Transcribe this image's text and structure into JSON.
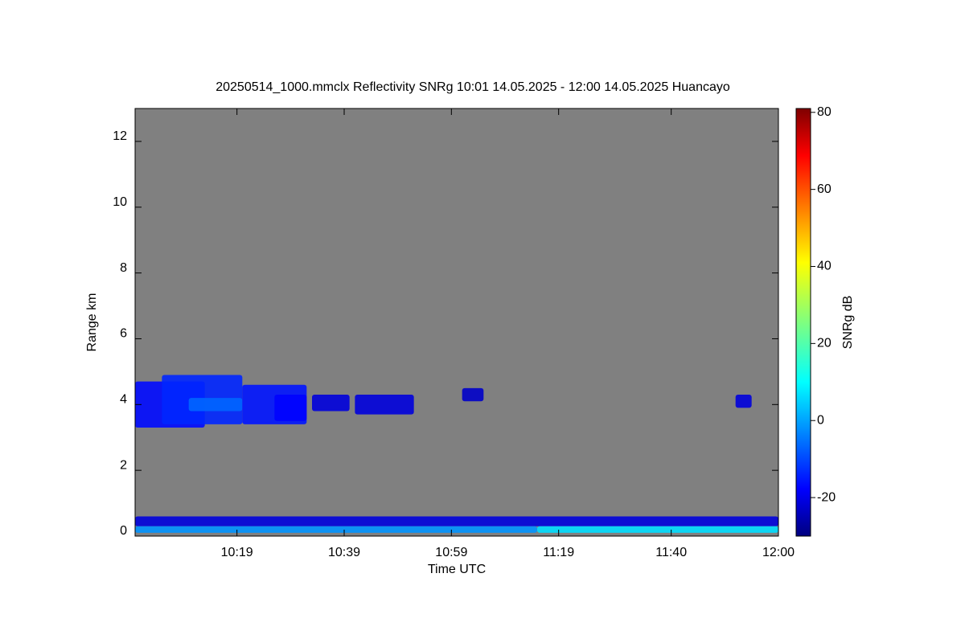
{
  "chart_data": {
    "type": "heatmap",
    "title": "20250514_1000.mmclx Reflectivity SNRg   10:01 14.05.2025 - 12:00 14.05.2025 Huancayo",
    "xlabel": "Time UTC",
    "ylabel": "Range km",
    "colorbar_label": "SNRg dB",
    "xlim": [
      "10:00",
      "12:00"
    ],
    "xticks": [
      "10:19",
      "10:39",
      "10:59",
      "11:19",
      "11:40",
      "12:00"
    ],
    "ylim": [
      0,
      13
    ],
    "yticks": [
      0,
      2,
      4,
      6,
      8,
      10,
      12
    ],
    "clim": [
      -30,
      81
    ],
    "cticks": [
      -20,
      0,
      20,
      40,
      60,
      80
    ],
    "colormap": "jet",
    "background": "#808080",
    "cells": [
      {
        "x": [
          "10:00",
          "10:13"
        ],
        "y": [
          3.3,
          4.7
        ],
        "value": -15
      },
      {
        "x": [
          "10:05",
          "10:20"
        ],
        "y": [
          3.4,
          4.9
        ],
        "value": -12
      },
      {
        "x": [
          "10:10",
          "10:20"
        ],
        "y": [
          3.8,
          4.2
        ],
        "value": -5
      },
      {
        "x": [
          "10:20",
          "10:32"
        ],
        "y": [
          3.4,
          4.6
        ],
        "value": -14
      },
      {
        "x": [
          "10:26",
          "10:32"
        ],
        "y": [
          3.5,
          4.3
        ],
        "value": -16
      },
      {
        "x": [
          "10:33",
          "10:40"
        ],
        "y": [
          3.8,
          4.3
        ],
        "value": -20
      },
      {
        "x": [
          "10:41",
          "10:52"
        ],
        "y": [
          3.7,
          4.3
        ],
        "value": -20
      },
      {
        "x": [
          "11:01",
          "11:05"
        ],
        "y": [
          4.1,
          4.5
        ],
        "value": -22
      },
      {
        "x": [
          "11:52",
          "11:55"
        ],
        "y": [
          3.9,
          4.3
        ],
        "value": -20
      },
      {
        "x": [
          "10:00",
          "12:00"
        ],
        "y": [
          0.3,
          0.6
        ],
        "value": -20
      },
      {
        "x": [
          "10:00",
          "11:15"
        ],
        "y": [
          0.1,
          0.3
        ],
        "value": 0
      },
      {
        "x": [
          "11:15",
          "12:00"
        ],
        "y": [
          0.1,
          0.3
        ],
        "value": 8
      }
    ]
  }
}
